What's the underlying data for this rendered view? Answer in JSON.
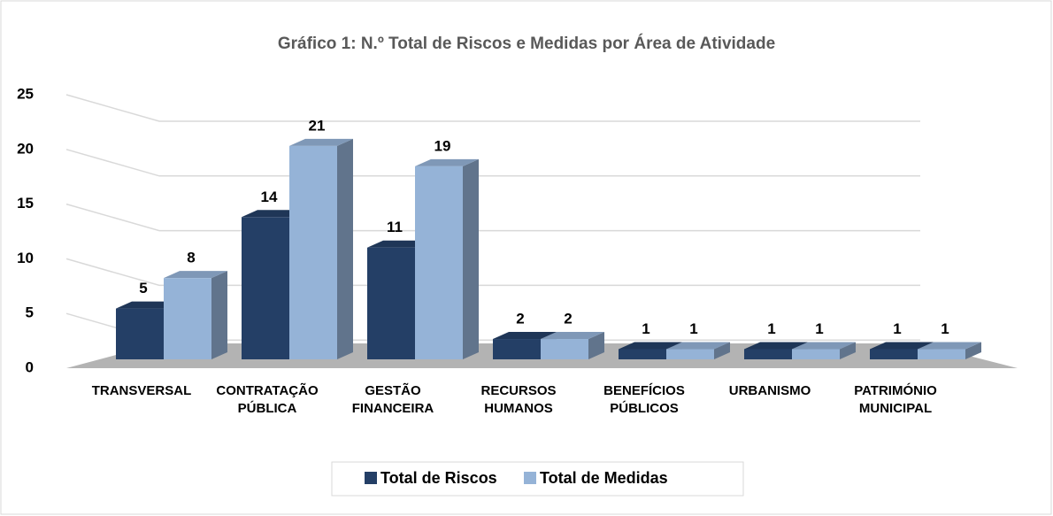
{
  "chart_data": {
    "type": "bar3d",
    "title": "Gráfico 1: N.º Total de Riscos e Medidas por Área de Atividade",
    "categories": [
      "TRANSVERSAL",
      "CONTRATAÇÃO PÚBLICA",
      "GESTÃO FINANCEIRA",
      "RECURSOS HUMANOS",
      "BENEFÍCIOS PÚBLICOS",
      "URBANISMO",
      "PATRIMÓNIO MUNICIPAL"
    ],
    "series": [
      {
        "name": "Total de Riscos",
        "color": "#243f66",
        "values": [
          5,
          14,
          11,
          2,
          1,
          1,
          1
        ]
      },
      {
        "name": "Total de Medidas",
        "color": "#95b3d7",
        "values": [
          8,
          21,
          19,
          2,
          1,
          1,
          1
        ]
      }
    ],
    "ylim": [
      0,
      25
    ],
    "yticks": [
      0,
      5,
      10,
      15,
      20,
      25
    ],
    "grid": true,
    "legend": "bottom"
  }
}
